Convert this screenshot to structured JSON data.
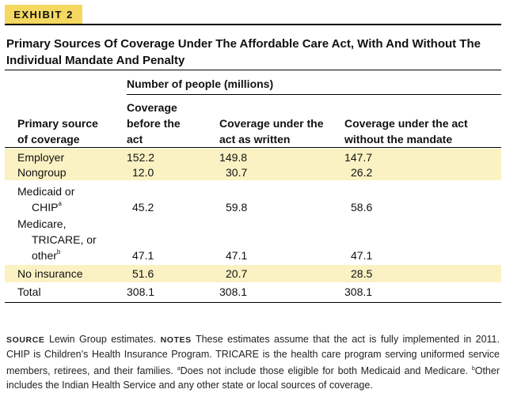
{
  "exhibit": {
    "label": "EXHIBIT 2"
  },
  "title": "Primary Sources Of Coverage Under The Affordable Care Act, With And Without The Individual Mandate And Penalty",
  "table": {
    "group_header": "Number of people (millions)",
    "columns": [
      {
        "line1": "Primary source",
        "line2": "of coverage"
      },
      {
        "line1": "Coverage",
        "line2": "before the",
        "line3": "act"
      },
      {
        "line1": "Coverage under the",
        "line2": "act as written"
      },
      {
        "line1": "Coverage under the act",
        "line2": "without the mandate"
      }
    ],
    "rows": [
      {
        "label_lines": [
          "Employer"
        ],
        "values": [
          "152.2",
          "149.8",
          "147.7"
        ]
      },
      {
        "label_lines": [
          "Nongroup"
        ],
        "values": [
          "12.0",
          "30.7",
          "26.2"
        ]
      },
      {
        "label_lines": [
          "Medicaid or",
          "CHIP"
        ],
        "footnote": "a",
        "values": [
          "45.2",
          "59.8",
          "58.6"
        ]
      },
      {
        "label_lines": [
          "Medicare,",
          "TRICARE, or",
          "other"
        ],
        "footnote": "b",
        "values": [
          "47.1",
          "47.1",
          "47.1"
        ]
      },
      {
        "label_lines": [
          "No insurance"
        ],
        "values": [
          "51.6",
          "20.7",
          "28.5"
        ]
      },
      {
        "label_lines": [
          "Total"
        ],
        "values": [
          "308.1",
          "308.1",
          "308.1"
        ]
      }
    ]
  },
  "notes": {
    "source_label": "SOURCE",
    "source_text": "Lewin Group estimates.",
    "notes_label": "NOTES",
    "notes_text": "These estimates assume that the act is fully implemented in 2011. CHIP is Children’s Health Insurance Program. TRICARE is the health care program serving uniformed service members, retirees, and their families.",
    "footnote_a_marker": "a",
    "footnote_a": "Does not include those eligible for both Medicaid and Medicare.",
    "footnote_b_marker": "b",
    "footnote_b": "Other includes the Indian Health Service and any other state or local sources of coverage."
  },
  "colors": {
    "badge": "#f4d860",
    "row_band": "#fbf2c4",
    "rule": "#000000"
  }
}
